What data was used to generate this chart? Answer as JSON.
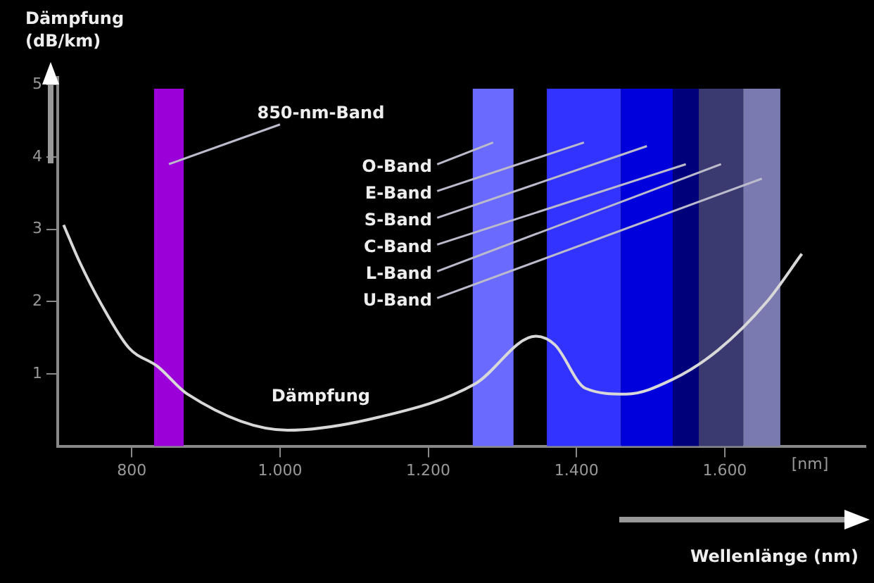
{
  "chart_data": {
    "type": "line",
    "xlabel": "Wellenlänge (nm)",
    "ylabel": "Dämpfung (dB/km)",
    "series": [
      {
        "name": "Dämpfung",
        "color": "#d8d8d8",
        "x": [
          708,
          729,
          759,
          796,
          835,
          875,
          1010,
          1133,
          1263,
          1345,
          1371,
          1412,
          1467,
          1529,
          1590,
          1657,
          1704
        ],
        "values": [
          3.06,
          2.56,
          1.96,
          1.36,
          1.1,
          0.72,
          0.22,
          0.4,
          0.86,
          1.52,
          1.4,
          0.8,
          0.72,
          0.92,
          1.32,
          2.0,
          2.66
        ]
      }
    ],
    "xlim": [
      700,
      1790
    ],
    "xticks": [
      {
        "value": 800,
        "label": "800"
      },
      {
        "value": 1000,
        "label": "1.000"
      },
      {
        "value": 1200,
        "label": "1.200"
      },
      {
        "value": 1400,
        "label": "1.400"
      },
      {
        "value": 1600,
        "label": "1.600"
      }
    ],
    "ylim": [
      0,
      5.1
    ],
    "yticks": [
      1,
      2,
      3,
      4,
      5
    ],
    "bands": [
      {
        "axis": "x",
        "from": 830,
        "to": 870,
        "label": "850-nm-Band",
        "color": "#9b00d9"
      },
      {
        "axis": "x",
        "from": 1260,
        "to": 1315,
        "label": "O-Band",
        "color": "#6a6aff"
      },
      {
        "axis": "x",
        "from": 1360,
        "to": 1460,
        "label": "E-Band",
        "color": "#3333ff"
      },
      {
        "axis": "x",
        "from": 1460,
        "to": 1530,
        "label": "S-Band",
        "color": "#0000dd"
      },
      {
        "axis": "x",
        "from": 1530,
        "to": 1565,
        "label": "C-Band",
        "color": "#00007a"
      },
      {
        "axis": "x",
        "from": 1565,
        "to": 1625,
        "label": "L-Band",
        "color": "#3a3a70"
      },
      {
        "axis": "x",
        "from": 1625,
        "to": 1675,
        "label": "U-Band",
        "color": "#7a7ab0"
      }
    ],
    "annotations": [
      "[nm]"
    ],
    "grid": false,
    "legend": false,
    "marker": "none",
    "line_style": "solid"
  }
}
